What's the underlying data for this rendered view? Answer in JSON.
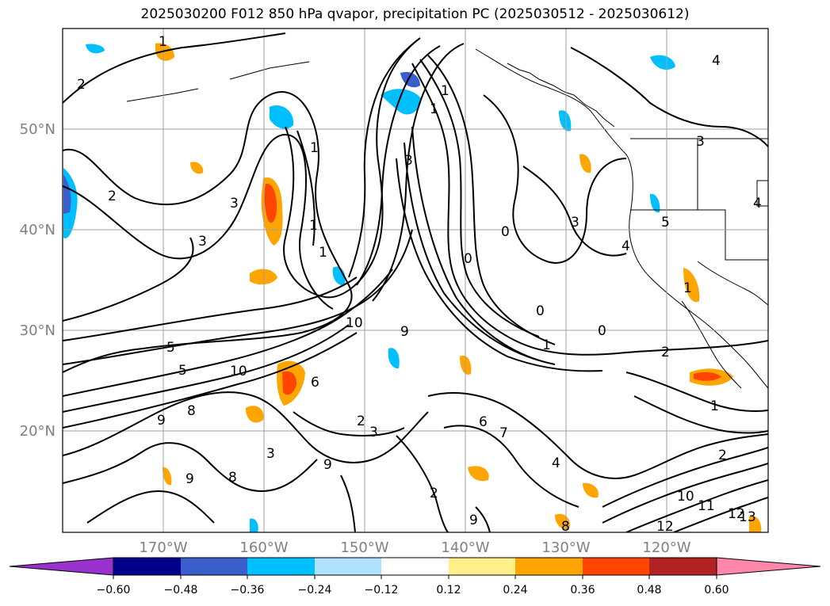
{
  "title": "2025030200 F012 850 hPa qvapor, precipitation PC (2025030512 - 2025030612)",
  "map": {
    "lat_labels": [
      "50°N",
      "40°N",
      "30°N",
      "20°N"
    ],
    "lon_labels": [
      "170°W",
      "160°W",
      "150°W",
      "140°W",
      "130°W",
      "120°W"
    ],
    "grid": true,
    "contour_labels": [
      "1",
      "2",
      "1",
      "2",
      "3",
      "1",
      "1",
      "3",
      "1",
      "1",
      "0",
      "3",
      "4",
      "3",
      "0",
      "0",
      "0",
      "1",
      "2",
      "5",
      "5",
      "10",
      "10",
      "6",
      "9",
      "8",
      "2",
      "3",
      "6",
      "7",
      "9",
      "8",
      "9",
      "3",
      "2",
      "9",
      "4",
      "8",
      "10",
      "11",
      "12",
      "13",
      "12",
      "1",
      "2",
      "4",
      "3",
      "4",
      "5",
      "1",
      "9"
    ]
  },
  "colorbar": {
    "ticks": [
      "−0.60",
      "−0.48",
      "−0.36",
      "−0.24",
      "−0.12",
      "0.12",
      "0.24",
      "0.36",
      "0.48",
      "0.60"
    ],
    "colors": [
      "#9932cc",
      "#00008b",
      "#3a5fcd",
      "#00bfff",
      "#b0e2ff",
      "#ffffff",
      "#fff08c",
      "#ffa500",
      "#ff4500",
      "#b22222",
      "#ff88aa"
    ]
  }
}
